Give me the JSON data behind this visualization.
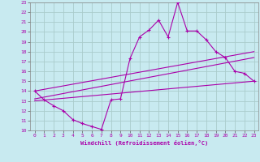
{
  "title": "",
  "xlabel": "Windchill (Refroidissement éolien,°C)",
  "bg_color": "#c8eaf0",
  "line_color": "#aa00aa",
  "grid_color": "#aacccc",
  "xlim": [
    -0.5,
    23.5
  ],
  "ylim": [
    10,
    23
  ],
  "xticks": [
    0,
    1,
    2,
    3,
    4,
    5,
    6,
    7,
    8,
    9,
    10,
    11,
    12,
    13,
    14,
    15,
    16,
    17,
    18,
    19,
    20,
    21,
    22,
    23
  ],
  "yticks": [
    10,
    11,
    12,
    13,
    14,
    15,
    16,
    17,
    18,
    19,
    20,
    21,
    22,
    23
  ],
  "main_x": [
    0,
    1,
    2,
    3,
    4,
    5,
    6,
    7,
    8,
    9,
    10,
    11,
    12,
    13,
    14,
    15,
    16,
    17,
    18,
    19,
    20,
    21,
    22,
    23
  ],
  "main_y": [
    14.0,
    13.1,
    12.5,
    12.0,
    11.1,
    10.7,
    10.4,
    10.1,
    13.1,
    13.2,
    17.3,
    19.5,
    20.2,
    21.2,
    19.5,
    23.0,
    20.1,
    20.1,
    19.2,
    18.0,
    17.4,
    16.0,
    15.8,
    15.0
  ],
  "line2_x": [
    0,
    23
  ],
  "line2_y": [
    13.2,
    17.4
  ],
  "line3_x": [
    0,
    23
  ],
  "line3_y": [
    13.0,
    15.0
  ],
  "line4_x": [
    0,
    23
  ],
  "line4_y": [
    14.0,
    18.0
  ]
}
